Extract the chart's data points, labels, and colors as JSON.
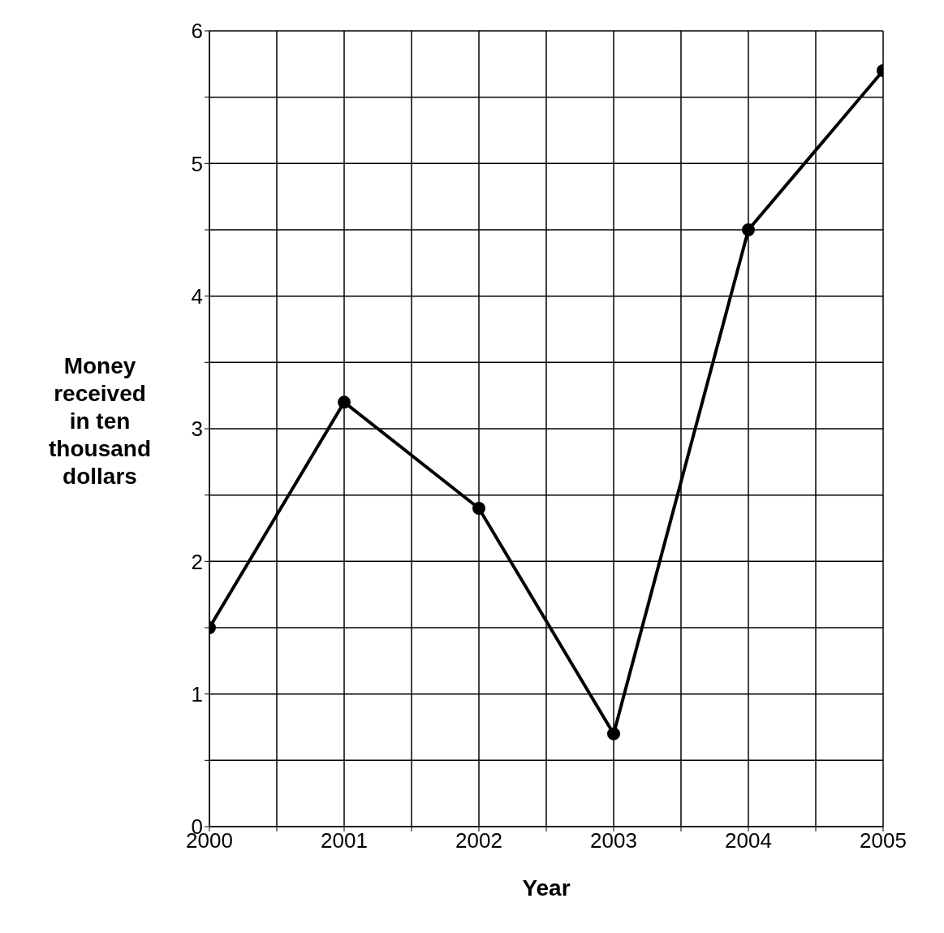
{
  "chart_data": {
    "type": "line",
    "xlabel": "Year",
    "ylabel": "Money received in ten thousand dollars",
    "x": [
      2000,
      2001,
      2002,
      2003,
      2004,
      2005
    ],
    "series": [
      {
        "color": "#000000",
        "values": [
          1.5,
          3.2,
          2.4,
          0.7,
          4.5,
          5.7
        ]
      }
    ],
    "xlim": [
      2000,
      2005
    ],
    "xticks": [
      2000,
      {
        "value": 2000.5,
        "label": null
      },
      2001,
      {
        "value": 2001.5,
        "label": null
      },
      2002,
      {
        "value": 2002.5,
        "label": null
      },
      2003,
      {
        "value": 2003.5,
        "label": null
      },
      2004,
      {
        "value": 2004.5,
        "label": null
      },
      2005
    ],
    "ylim": [
      0,
      6
    ],
    "yticks": [
      0,
      {
        "value": 0.5,
        "label": null
      },
      1,
      {
        "value": 1.5,
        "label": null
      },
      2,
      {
        "value": 2.5,
        "label": null
      },
      3,
      {
        "value": 3.5,
        "label": null
      },
      4,
      {
        "value": 4.5,
        "label": null
      },
      5,
      {
        "value": 5.5,
        "label": null
      },
      6
    ],
    "grid": true,
    "marker": "circle",
    "line_style": "solid"
  }
}
